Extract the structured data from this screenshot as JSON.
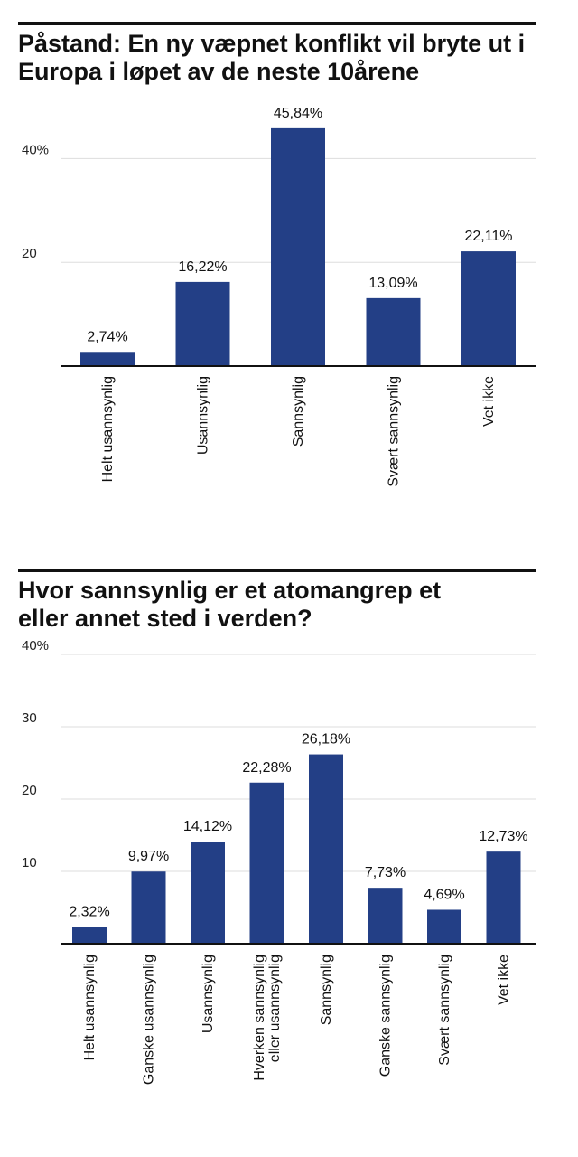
{
  "colors": {
    "bar": "#233f86",
    "grid": "#dddddd",
    "axis": "#111111"
  },
  "chart_data": [
    {
      "type": "bar",
      "title": "Påstand: En ny væpnet konflikt vil bryte ut i Europa i løpet av de neste 10årene",
      "categories": [
        "Helt usannsynlig",
        "Usannsynlig",
        "Sannsynlig",
        "Svært sannsynlig",
        "Vet ikke"
      ],
      "values": [
        2.74,
        16.22,
        45.84,
        13.09,
        22.11
      ],
      "value_labels": [
        "2,74%",
        "16,22%",
        "45,84%",
        "13,09%",
        "22,11%"
      ],
      "ticks": [
        {
          "value": 20,
          "label": "20"
        },
        {
          "value": 40,
          "label": "40%"
        }
      ],
      "ylim": [
        0,
        50
      ],
      "grid": true,
      "xlabel": "",
      "ylabel": ""
    },
    {
      "type": "bar",
      "title": "Hvor sannsynlig er et atomangrep et eller annet sted i verden?",
      "categories": [
        "Helt usannsynlig",
        "Ganske usannsynlig",
        "Usannsynlig",
        "Hverken sannsynlig eller usannsynlig",
        "Sannsynlig",
        "Ganske sannsynlig",
        "Svært sannsynlig",
        "Vet ikke"
      ],
      "category_lines": [
        [
          "Helt usannsynlig"
        ],
        [
          "Ganske usannsynlig"
        ],
        [
          "Usannsynlig"
        ],
        [
          "Hverken sannsynlig",
          "eller usannsynlig"
        ],
        [
          "Sannsynlig"
        ],
        [
          "Ganske sannsynlig"
        ],
        [
          "Svært sannsynlig"
        ],
        [
          "Vet ikke"
        ]
      ],
      "values": [
        2.32,
        9.97,
        14.12,
        22.28,
        26.18,
        7.73,
        4.69,
        12.73
      ],
      "value_labels": [
        "2,32%",
        "9,97%",
        "14,12%",
        "22,28%",
        "26,18%",
        "7,73%",
        "4,69%",
        "12,73%"
      ],
      "ticks": [
        {
          "value": 10,
          "label": "10"
        },
        {
          "value": 20,
          "label": "20"
        },
        {
          "value": 30,
          "label": "30"
        },
        {
          "value": 40,
          "label": "40%"
        }
      ],
      "ylim": [
        0,
        40
      ],
      "grid": true,
      "xlabel": "",
      "ylabel": ""
    }
  ]
}
